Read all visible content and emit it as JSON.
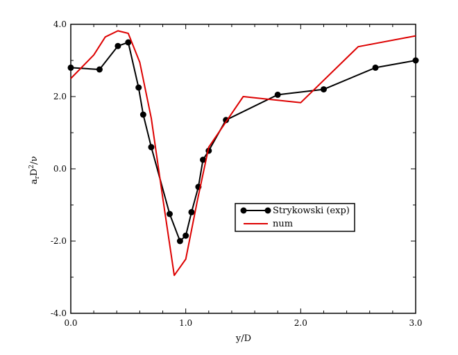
{
  "chart_data": {
    "type": "line",
    "xlabel": "y/D",
    "ylabel": {
      "base": "a",
      "sub": "r",
      "mid": "D",
      "sup": "2",
      "tail": "/ν"
    },
    "xlim": [
      0.0,
      3.0
    ],
    "ylim": [
      -4.0,
      4.0
    ],
    "xticks": [
      0.0,
      1.0,
      2.0,
      3.0
    ],
    "xtick_labels": [
      "0.0",
      "1.0",
      "2.0",
      "3.0"
    ],
    "yticks": [
      -4.0,
      -2.0,
      0.0,
      2.0,
      4.0
    ],
    "ytick_labels": [
      "-4.0",
      "-2.0",
      "0.0",
      "2.0",
      "4.0"
    ],
    "grid": false,
    "legend_position": "center-right",
    "series": [
      {
        "name": "Strykowski (exp)",
        "color": "#000000",
        "marker": "circle",
        "x": [
          0.0,
          0.25,
          0.41,
          0.5,
          0.59,
          0.63,
          0.7,
          0.86,
          0.95,
          1.0,
          1.05,
          1.11,
          1.15,
          1.2,
          1.35,
          1.8,
          2.2,
          2.65,
          3.0
        ],
        "y": [
          2.8,
          2.75,
          3.4,
          3.5,
          2.25,
          1.5,
          0.6,
          -1.25,
          -2.0,
          -1.85,
          -1.2,
          -0.5,
          0.25,
          0.5,
          1.35,
          2.05,
          2.2,
          2.8,
          3.0
        ]
      },
      {
        "name": "num",
        "color": "#dd0000",
        "marker": "none",
        "x": [
          0.0,
          0.2,
          0.3,
          0.41,
          0.5,
          0.6,
          0.7,
          0.8,
          0.9,
          1.0,
          1.1,
          1.2,
          1.5,
          2.0,
          2.5,
          3.0
        ],
        "y": [
          2.5,
          3.15,
          3.65,
          3.82,
          3.75,
          2.95,
          1.4,
          -0.8,
          -2.95,
          -2.5,
          -0.9,
          0.6,
          2.0,
          1.83,
          3.38,
          3.68
        ]
      }
    ]
  }
}
